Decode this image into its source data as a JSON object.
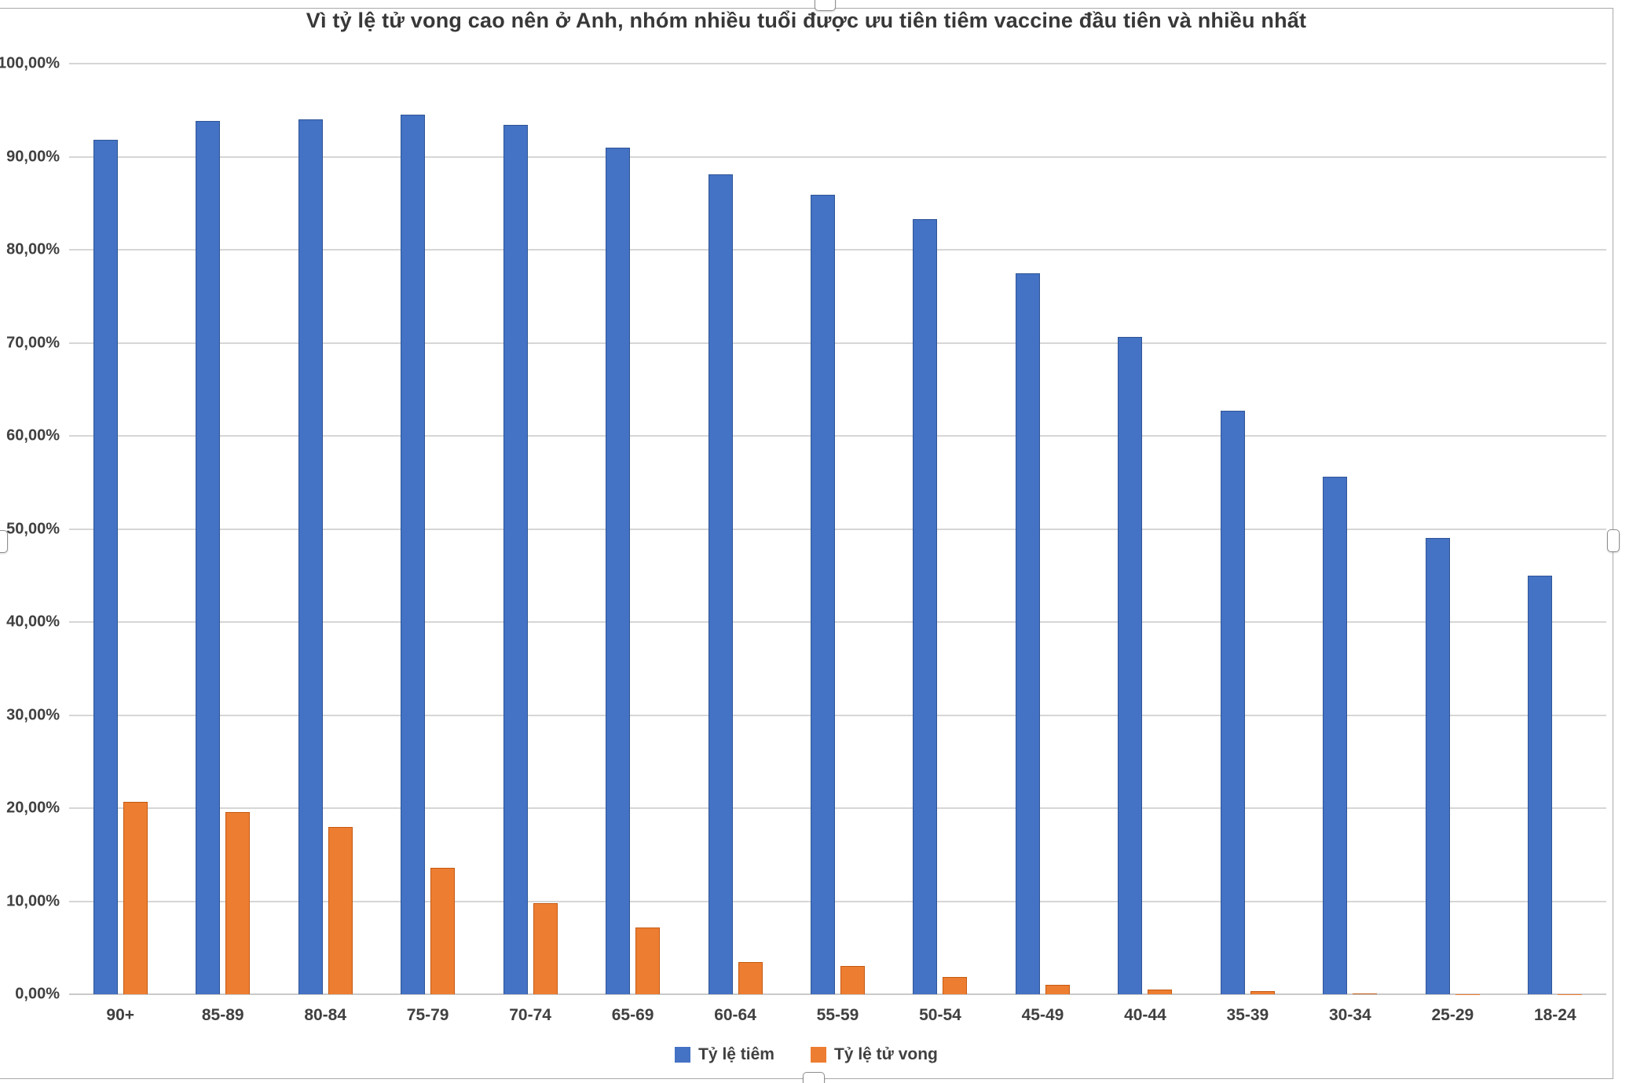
{
  "chart_data": {
    "type": "bar",
    "title": "Vì tỷ lệ tử vong cao nên ở Anh, nhóm nhiều tuổi được ưu tiên tiêm vaccine đầu tiên và nhiều nhất",
    "categories": [
      "90+",
      "85-89",
      "80-84",
      "75-79",
      "70-74",
      "65-69",
      "60-64",
      "55-59",
      "50-54",
      "45-49",
      "40-44",
      "35-39",
      "30-34",
      "25-29",
      "18-24"
    ],
    "series": [
      {
        "name": "Tỷ lệ tiêm",
        "color": "#4472C4",
        "edge_color": "#2F5597",
        "values": [
          91.8,
          93.8,
          94.0,
          94.5,
          93.4,
          91.0,
          88.1,
          85.9,
          83.3,
          77.5,
          70.6,
          62.7,
          55.6,
          49.0,
          45.0
        ]
      },
      {
        "name": "Tỷ lệ tử vong",
        "color": "#ED7D31",
        "edge_color": "#C55A11",
        "values": [
          20.7,
          19.6,
          18.0,
          13.6,
          9.8,
          7.2,
          3.5,
          3.0,
          1.9,
          1.0,
          0.5,
          0.3,
          0.1,
          0.03,
          0.02
        ]
      }
    ],
    "xlabel": "",
    "ylabel": "",
    "y_axis": {
      "min": 0,
      "max": 100,
      "tick_labels": [
        "0,00%",
        "10,00%",
        "20,00%",
        "30,00%",
        "40,00%",
        "50,00%",
        "60,00%",
        "70,00%",
        "80,00%",
        "90,00%",
        "100,00%"
      ]
    },
    "grid": true,
    "legend_position": "bottom"
  }
}
